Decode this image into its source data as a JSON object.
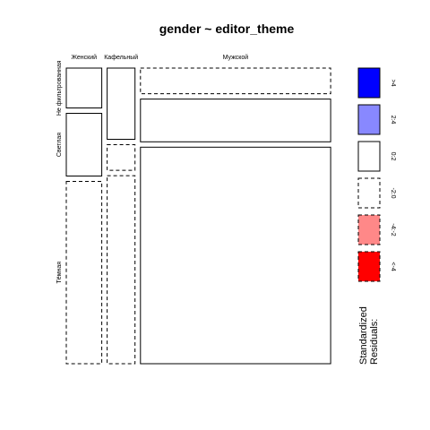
{
  "chart_data": {
    "type": "mosaic",
    "title": "gender ~ editor_theme",
    "x_variable": "gender",
    "y_variable": "editor_theme",
    "x_levels": [
      "Женский",
      "Кафельный",
      "Мужской"
    ],
    "y_levels": [
      "Не фильтрованная",
      "Светлая",
      "Тёмная"
    ],
    "x_proportions": [
      0.14,
      0.11,
      0.75
    ],
    "cells": [
      {
        "gender": "Женский",
        "theme": "Не фильтрованная",
        "proportion": 0.14,
        "residual_class": "0:2",
        "fill": "#ffffff",
        "dashed": false
      },
      {
        "gender": "Женский",
        "theme": "Светлая",
        "proportion": 0.22,
        "residual_class": "0:2",
        "fill": "#ffffff",
        "dashed": false
      },
      {
        "gender": "Женский",
        "theme": "Тёмная",
        "proportion": 0.64,
        "residual_class": "-2:0",
        "fill": "#ffffff",
        "dashed": true
      },
      {
        "gender": "Кафельный",
        "theme": "Не фильтрованная",
        "proportion": 0.25,
        "residual_class": "0:2",
        "fill": "#ffffff",
        "dashed": false
      },
      {
        "gender": "Кафельный",
        "theme": "Светлая",
        "proportion": 0.09,
        "residual_class": "-2:0",
        "fill": "#ffffff",
        "dashed": true
      },
      {
        "gender": "Кафельный",
        "theme": "Тёмная",
        "proportion": 0.66,
        "residual_class": "-2:0",
        "fill": "#ffffff",
        "dashed": true
      },
      {
        "gender": "Мужской",
        "theme": "Не фильтрованная",
        "proportion": 0.09,
        "residual_class": "-2:0",
        "fill": "#ffffff",
        "dashed": true
      },
      {
        "gender": "Мужской",
        "theme": "Светлая",
        "proportion": 0.15,
        "residual_class": "0:2",
        "fill": "#ffffff",
        "dashed": false
      },
      {
        "gender": "Мужской",
        "theme": "Тёмная",
        "proportion": 0.76,
        "residual_class": "0:2",
        "fill": "#ffffff",
        "dashed": false
      }
    ],
    "legend": {
      "title_lines": [
        "Standardized",
        "Residuals:"
      ],
      "placement": "right",
      "items": [
        {
          "label": ">4",
          "fill": "#0000ff",
          "dashed": false
        },
        {
          "label": "2:4",
          "fill": "#8888ff",
          "dashed": false
        },
        {
          "label": "0:2",
          "fill": "#ffffff",
          "dashed": false
        },
        {
          "label": "-2:0",
          "fill": "#ffffff",
          "dashed": true
        },
        {
          "label": "-4:-2",
          "fill": "#ff8888",
          "dashed": true
        },
        {
          "label": "<-4",
          "fill": "#ff0000",
          "dashed": true
        }
      ]
    }
  }
}
